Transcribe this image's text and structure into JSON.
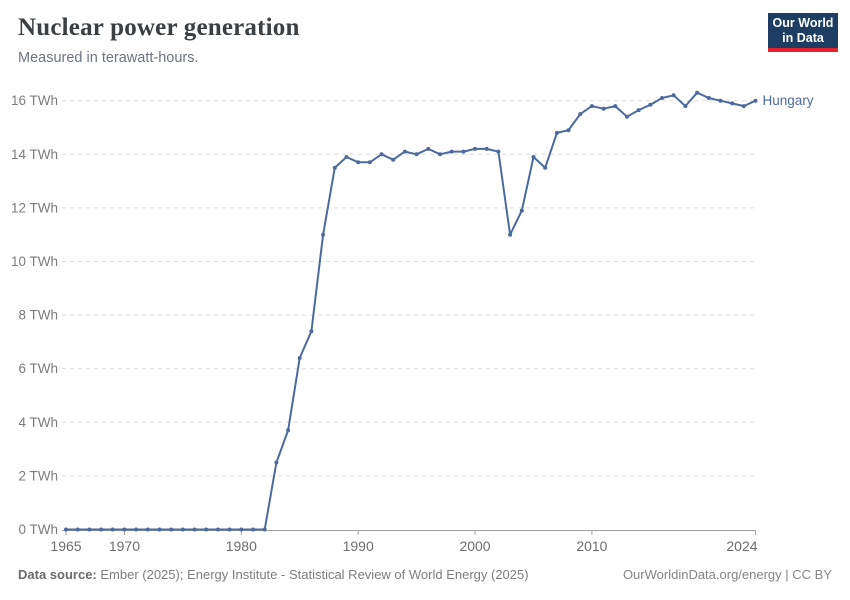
{
  "header": {
    "title": "Nuclear power generation",
    "subtitle": "Measured in terawatt-hours.",
    "logo": {
      "line1": "Our World",
      "line2": "in Data"
    }
  },
  "chart_data": {
    "type": "line",
    "title": "Nuclear power generation",
    "unit": "TWh",
    "entity": "Hungary",
    "line_color": "#4c6a9c",
    "grid": "horizontal-dashed",
    "legend_position": "end-of-line",
    "ylim": [
      0,
      16
    ],
    "yticks": [
      0,
      2,
      4,
      6,
      8,
      10,
      12,
      14,
      16
    ],
    "ytick_suffix": " TWh",
    "xticks": [
      1965,
      1970,
      1980,
      1990,
      2000,
      2010,
      2024
    ],
    "x": [
      1965,
      1966,
      1967,
      1968,
      1969,
      1970,
      1971,
      1972,
      1973,
      1974,
      1975,
      1976,
      1977,
      1978,
      1979,
      1980,
      1981,
      1982,
      1983,
      1984,
      1985,
      1986,
      1987,
      1988,
      1989,
      1990,
      1991,
      1992,
      1993,
      1994,
      1995,
      1996,
      1997,
      1998,
      1999,
      2000,
      2001,
      2002,
      2003,
      2004,
      2005,
      2006,
      2007,
      2008,
      2009,
      2010,
      2011,
      2012,
      2013,
      2014,
      2015,
      2016,
      2017,
      2018,
      2019,
      2020,
      2021,
      2022,
      2023,
      2024
    ],
    "series": [
      {
        "name": "Hungary",
        "values": [
          0,
          0,
          0,
          0,
          0,
          0,
          0,
          0,
          0,
          0,
          0,
          0,
          0,
          0,
          0,
          0,
          0,
          0,
          2.5,
          3.7,
          6.4,
          7.4,
          11.0,
          13.5,
          13.9,
          13.7,
          13.7,
          14.0,
          13.8,
          14.1,
          14.0,
          14.2,
          14.0,
          14.1,
          14.1,
          14.2,
          14.2,
          14.1,
          11.0,
          11.9,
          13.9,
          13.5,
          14.8,
          14.9,
          15.5,
          15.8,
          15.7,
          15.8,
          15.4,
          15.65,
          15.85,
          16.1,
          16.2,
          15.8,
          16.3,
          16.1,
          16.0,
          15.9,
          15.8,
          16.0
        ]
      }
    ]
  },
  "footer": {
    "source_label": "Data source:",
    "source_text": " Ember (2025); Energy Institute - Statistical Review of World Energy (2025)",
    "credit": "OurWorldinData.org/energy | CC BY"
  },
  "colors": {
    "accent_navy": "#1d3d63",
    "accent_red": "#e0232e",
    "line": "#4c6a9c",
    "gridline": "#dcdcdc",
    "axis": "#a0a0a0"
  }
}
